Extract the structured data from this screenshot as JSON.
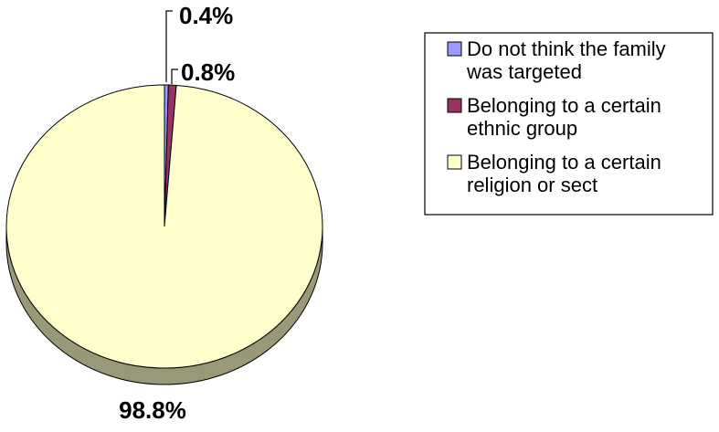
{
  "chart_data": {
    "type": "pie",
    "style": "3d",
    "title": "",
    "slices": [
      {
        "label": "Do not think the family was targeted",
        "value": 0.4,
        "data_label": "0.4%",
        "color": "#9999ff",
        "side_color": "#5c5c99"
      },
      {
        "label": "Belonging to a certain ethnic group",
        "value": 0.8,
        "data_label": "0.8%",
        "color": "#993366",
        "side_color": "#5c1f3d"
      },
      {
        "label": "Belonging to a certain religion or sect",
        "value": 98.8,
        "data_label": "98.8%",
        "color": "#ffffcc",
        "side_color": "#99997a"
      }
    ],
    "legend": {
      "position": "top-right",
      "entries": [
        {
          "lines": [
            "Do not think the family",
            "was targeted"
          ],
          "color": "#9999ff"
        },
        {
          "lines": [
            "Belonging to a certain",
            "ethnic group"
          ],
          "color": "#993366"
        },
        {
          "lines": [
            "Belonging to a certain",
            "religion or sect"
          ],
          "color": "#ffffcc"
        }
      ]
    }
  }
}
